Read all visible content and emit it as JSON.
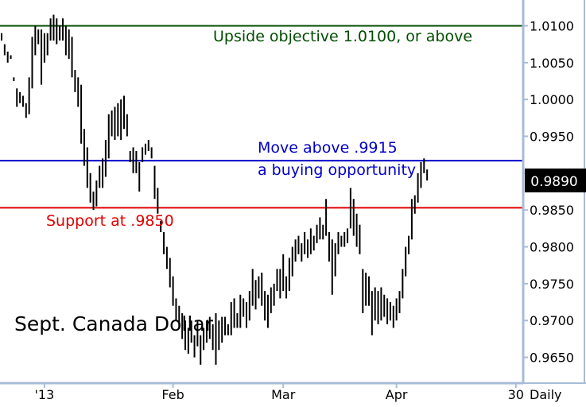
{
  "chart_data": {
    "type": "ohlc",
    "title": "Sept. Canada Dollar",
    "frequency_label": "Daily",
    "ylim": [
      0.9615,
      1.0135
    ],
    "y_ticks": [
      "0.9650",
      "0.9700",
      "0.9750",
      "0.9800",
      "0.9850",
      "0.9900",
      "0.9950",
      "1.0000",
      "1.0050",
      "1.0100"
    ],
    "x_ticks": [
      {
        "label": "'13",
        "bar": 14
      },
      {
        "label": "Feb",
        "bar": 56
      },
      {
        "label": "Mar",
        "bar": 92
      },
      {
        "label": "Apr",
        "bar": 129
      },
      {
        "label": "30",
        "bar": 168
      }
    ],
    "last_price": "0.9890",
    "horizontal_lines": [
      {
        "value": 1.01,
        "color": "#004d00",
        "label": "Upside objective 1.0100, or above",
        "label_color": "#004d00"
      },
      {
        "value": 0.9917,
        "color": "#0000c8",
        "label": "Move above .9915",
        "label2": "a buying opportunity",
        "label_color": "#0000c8"
      },
      {
        "value": 0.9853,
        "color": "#e00000",
        "label": "Support at .9850",
        "label_color": "#e00000"
      }
    ],
    "bars": [
      [
        1.009,
        1.008
      ],
      [
        1.0075,
        1.006
      ],
      [
        1.0065,
        1.005
      ],
      [
        1.006,
        1.0055
      ],
      [
        1.003,
        1.0025
      ],
      [
        1.0015,
        0.999
      ],
      [
        1.001,
        0.9995
      ],
      [
        1.0005,
        0.999
      ],
      [
        0.9995,
        0.9975
      ],
      [
        1.003,
        0.998
      ],
      [
        1.0085,
        1.0015
      ],
      [
        1.01,
        1.006
      ],
      [
        1.0095,
        1.0075
      ],
      [
        1.0095,
        1.002
      ],
      [
        1.009,
        1.005
      ],
      [
        1.009,
        1.006
      ],
      [
        1.011,
        1.008
      ],
      [
        1.0115,
        1.008
      ],
      [
        1.011,
        1.0075
      ],
      [
        1.01,
        1.008
      ],
      [
        1.011,
        1.008
      ],
      [
        1.01,
        1.006
      ],
      [
        1.0095,
        1.0055
      ],
      [
        1.0085,
        1.003
      ],
      [
        1.004,
        1.001
      ],
      [
        1.003,
        0.999
      ],
      [
        1.002,
        0.994
      ],
      [
        0.996,
        0.991
      ],
      [
        0.9935,
        0.988
      ],
      [
        0.99,
        0.986
      ],
      [
        0.9875,
        0.985
      ],
      [
        0.989,
        0.9855
      ],
      [
        0.991,
        0.988
      ],
      [
        0.992,
        0.988
      ],
      [
        0.9945,
        0.9895
      ],
      [
        0.998,
        0.992
      ],
      [
        0.9985,
        0.995
      ],
      [
        0.999,
        0.9945
      ],
      [
        0.9995,
        0.995
      ],
      [
        1.0,
        0.9945
      ],
      [
        1.0005,
        0.996
      ],
      [
        0.998,
        0.995
      ],
      [
        0.993,
        0.9915
      ],
      [
        0.9935,
        0.99
      ],
      [
        0.993,
        0.99
      ],
      [
        0.9915,
        0.9875
      ],
      [
        0.9935,
        0.9915
      ],
      [
        0.994,
        0.9925
      ],
      [
        0.9945,
        0.993
      ],
      [
        0.9935,
        0.992
      ],
      [
        0.991,
        0.9865
      ],
      [
        0.988,
        0.9845
      ],
      [
        0.9835,
        0.982
      ],
      [
        0.982,
        0.979
      ],
      [
        0.98,
        0.977
      ],
      [
        0.9785,
        0.9745
      ],
      [
        0.976,
        0.972
      ],
      [
        0.973,
        0.97
      ],
      [
        0.972,
        0.969
      ],
      [
        0.971,
        0.9675
      ],
      [
        0.97,
        0.966
      ],
      [
        0.969,
        0.9655
      ],
      [
        0.97,
        0.967
      ],
      [
        0.968,
        0.965
      ],
      [
        0.97,
        0.9665
      ],
      [
        0.968,
        0.964
      ],
      [
        0.969,
        0.966
      ],
      [
        0.97,
        0.967
      ],
      [
        0.9705,
        0.9675
      ],
      [
        0.9695,
        0.966
      ],
      [
        0.971,
        0.964
      ],
      [
        0.97,
        0.966
      ],
      [
        0.9705,
        0.967
      ],
      [
        0.9705,
        0.968
      ],
      [
        0.9695,
        0.968
      ],
      [
        0.9725,
        0.968
      ],
      [
        0.973,
        0.969
      ],
      [
        0.971,
        0.969
      ],
      [
        0.9735,
        0.969
      ],
      [
        0.973,
        0.9705
      ],
      [
        0.9725,
        0.969
      ],
      [
        0.974,
        0.97
      ],
      [
        0.977,
        0.972
      ],
      [
        0.9755,
        0.9715
      ],
      [
        0.976,
        0.973
      ],
      [
        0.9765,
        0.972
      ],
      [
        0.974,
        0.97
      ],
      [
        0.9735,
        0.969
      ],
      [
        0.9745,
        0.971
      ],
      [
        0.975,
        0.972
      ],
      [
        0.977,
        0.974
      ],
      [
        0.977,
        0.973
      ],
      [
        0.979,
        0.974
      ],
      [
        0.976,
        0.973
      ],
      [
        0.9785,
        0.974
      ],
      [
        0.98,
        0.976
      ],
      [
        0.981,
        0.978
      ],
      [
        0.9815,
        0.979
      ],
      [
        0.9805,
        0.978
      ],
      [
        0.982,
        0.979
      ],
      [
        0.981,
        0.9785
      ],
      [
        0.9825,
        0.979
      ],
      [
        0.9815,
        0.9795
      ],
      [
        0.983,
        0.9805
      ],
      [
        0.984,
        0.981
      ],
      [
        0.983,
        0.981
      ],
      [
        0.9865,
        0.9815
      ],
      [
        0.982,
        0.978
      ],
      [
        0.981,
        0.9735
      ],
      [
        0.9805,
        0.976
      ],
      [
        0.982,
        0.979
      ],
      [
        0.9815,
        0.98
      ],
      [
        0.982,
        0.98
      ],
      [
        0.9825,
        0.9805
      ],
      [
        0.988,
        0.9825
      ],
      [
        0.9865,
        0.9815
      ],
      [
        0.9845,
        0.98
      ],
      [
        0.983,
        0.979
      ],
      [
        0.977,
        0.971
      ],
      [
        0.9765,
        0.972
      ],
      [
        0.976,
        0.972
      ],
      [
        0.974,
        0.968
      ],
      [
        0.9745,
        0.97
      ],
      [
        0.974,
        0.9695
      ],
      [
        0.9745,
        0.97
      ],
      [
        0.9735,
        0.9705
      ],
      [
        0.973,
        0.9695
      ],
      [
        0.9725,
        0.97
      ],
      [
        0.972,
        0.969
      ],
      [
        0.973,
        0.97
      ],
      [
        0.974,
        0.971
      ],
      [
        0.977,
        0.973
      ],
      [
        0.98,
        0.976
      ],
      [
        0.9815,
        0.979
      ],
      [
        0.9865,
        0.981
      ],
      [
        0.987,
        0.9845
      ],
      [
        0.99,
        0.986
      ],
      [
        0.9915,
        0.988
      ],
      [
        0.992,
        0.99
      ],
      [
        0.9905,
        0.989
      ]
    ]
  }
}
